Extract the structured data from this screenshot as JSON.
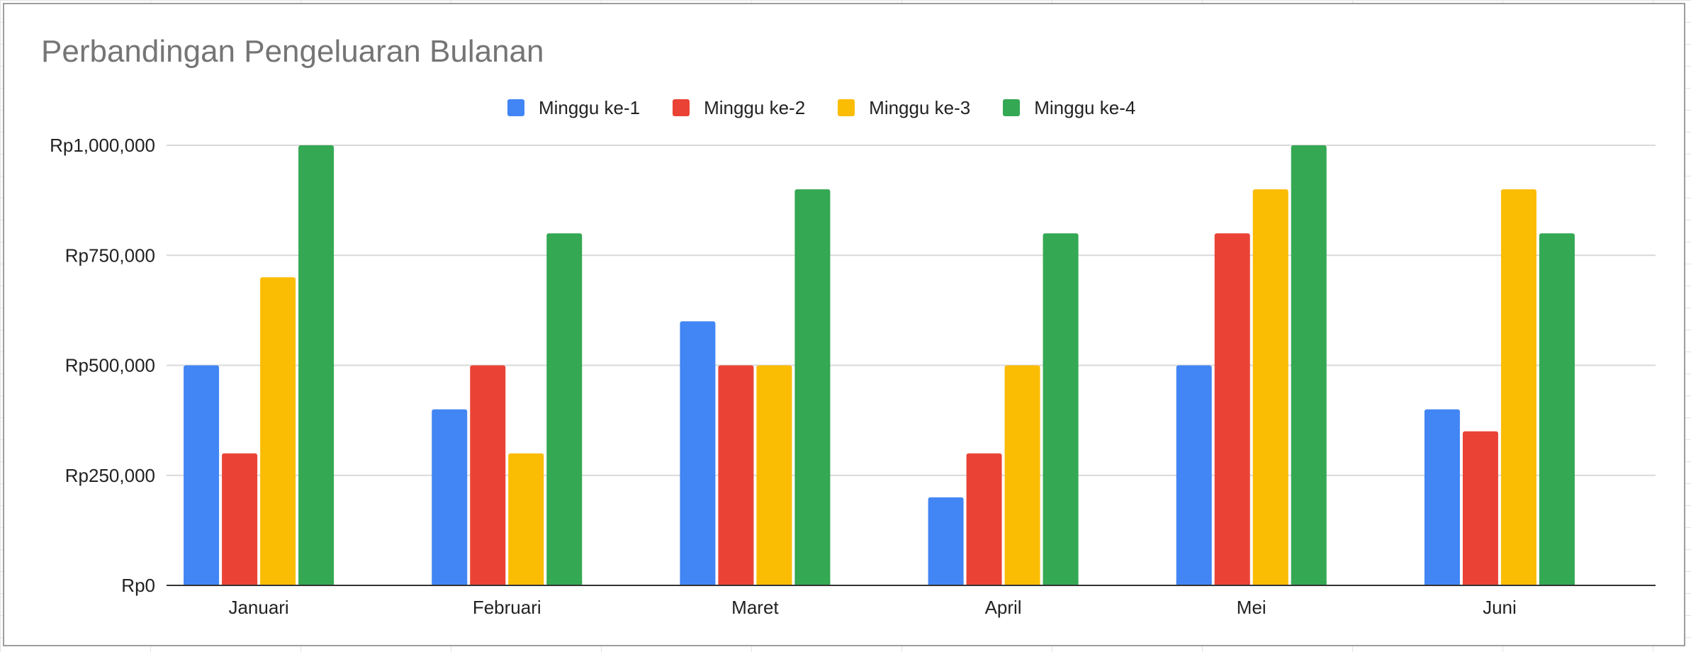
{
  "chart_data": {
    "type": "bar",
    "title": "Perbandingan Pengeluaran Bulanan",
    "categories": [
      "Januari",
      "Februari",
      "Maret",
      "April",
      "Mei",
      "Juni"
    ],
    "series": [
      {
        "name": "Minggu ke-1",
        "color": "#4285F4",
        "values": [
          500000,
          400000,
          600000,
          200000,
          500000,
          400000
        ]
      },
      {
        "name": "Minggu ke-2",
        "color": "#EA4335",
        "values": [
          300000,
          500000,
          500000,
          300000,
          800000,
          350000
        ]
      },
      {
        "name": "Minggu ke-3",
        "color": "#FBBC04",
        "values": [
          700000,
          300000,
          500000,
          500000,
          900000,
          900000
        ]
      },
      {
        "name": "Minggu ke-4",
        "color": "#34A853",
        "values": [
          1000000,
          800000,
          900000,
          800000,
          1000000,
          800000
        ]
      }
    ],
    "ylim": [
      0,
      1000000
    ],
    "yticks": [
      0,
      250000,
      500000,
      750000,
      1000000
    ],
    "ytick_labels": [
      "Rp0",
      "Rp250,000",
      "Rp500,000",
      "Rp750,000",
      "Rp1,000,000"
    ],
    "grid": true,
    "legend_position": "top"
  }
}
